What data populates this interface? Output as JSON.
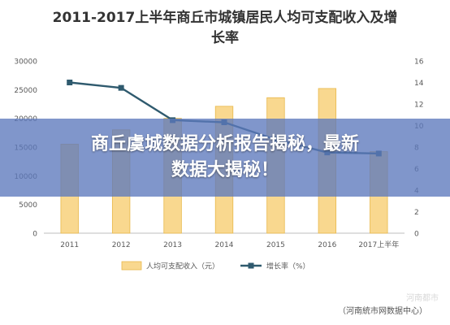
{
  "title_line1": "2011-2017上半年商丘市城镇居民人均可支配收入及增",
  "title_line2": "长率",
  "banner_line1": "商丘虞城数据分析报告揭秘，最新",
  "banner_line2": "数据大揭秘！",
  "source_text": "（河南統市网数据中心）",
  "watermark_text": "河南都市",
  "colors": {
    "bar_fill": "#F9D88F",
    "bar_stroke": "#E8B84A",
    "line": "#2F5A6E",
    "axis_text": "#595959",
    "grid": "#E6E6E6",
    "banner": "#5C78BC"
  },
  "chart_data": {
    "type": "bar",
    "title": "2011-2017上半年商丘市城镇居民人均可支配收入及增长率",
    "categories": [
      "2011",
      "2012",
      "2013",
      "2014",
      "2015",
      "2016",
      "2017上半年"
    ],
    "series": [
      {
        "name": "人均可支配收入（元）",
        "type": "bar",
        "axis": "left",
        "values": [
          15500,
          18000,
          20000,
          22100,
          23600,
          25200,
          14200
        ]
      },
      {
        "name": "增长率（%）",
        "type": "line",
        "axis": "right",
        "values": [
          14.0,
          13.5,
          10.5,
          10.3,
          8.7,
          7.5,
          7.4
        ]
      }
    ],
    "left_axis": {
      "ticks": [
        0,
        5000,
        10000,
        15000,
        20000,
        25000,
        30000
      ],
      "ylim": [
        0,
        30000
      ]
    },
    "right_axis": {
      "ticks": [
        0,
        2,
        4,
        6,
        8,
        10,
        12,
        14,
        16
      ],
      "ylim": [
        0,
        16
      ]
    },
    "grid": false,
    "legend_position": "bottom"
  }
}
